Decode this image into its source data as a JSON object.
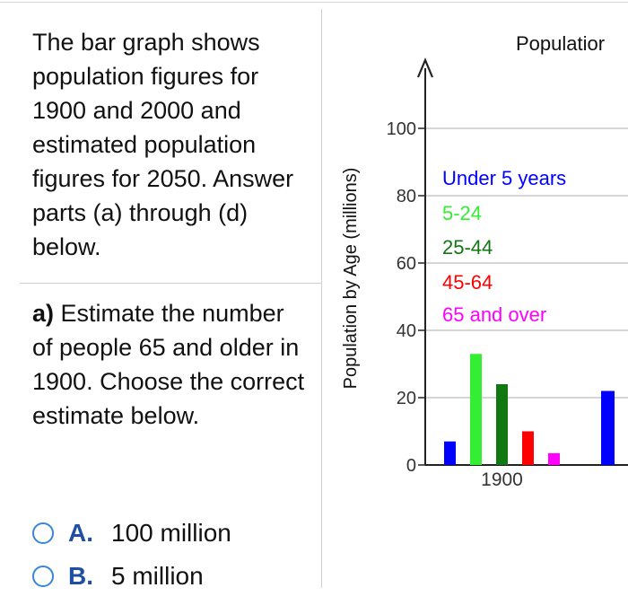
{
  "prompt": {
    "text": "The bar graph shows population figures for 1900 and 2000 and estimated population figures for 2050. Answer parts (a) through (d) below."
  },
  "question": {
    "label": "a)",
    "text": " Estimate the number of people 65 and older in 1900. Choose the correct estimate below."
  },
  "options": [
    {
      "letter": "A.",
      "text": "100 million"
    },
    {
      "letter": "B.",
      "text": "5 million"
    }
  ],
  "colors": {
    "accent": "#1f4fa3",
    "radio": "#3a86d6"
  },
  "chart_data": {
    "type": "bar",
    "title": "Populatior",
    "ylabel": "Population by Age (millions)",
    "ylim": [
      0,
      100
    ],
    "yticks": [
      0,
      20,
      40,
      60,
      80,
      100
    ],
    "grid": true,
    "legend_position": "top-right",
    "categories": [
      "1900"
    ],
    "series": [
      {
        "name": "Under 5 years",
        "color": "#0000ff",
        "values": [
          7
        ]
      },
      {
        "name": "5-24",
        "color": "#33ee33",
        "values": [
          33
        ]
      },
      {
        "name": "25-44",
        "color": "#117711",
        "values": [
          24
        ]
      },
      {
        "name": "45-64",
        "color": "#ff0000",
        "values": [
          10
        ]
      },
      {
        "name": "65 and over",
        "color": "#ff00ff",
        "values": [
          3.5
        ]
      }
    ],
    "partial_next_bar": {
      "series": "Under 5 years",
      "value": 22
    }
  }
}
